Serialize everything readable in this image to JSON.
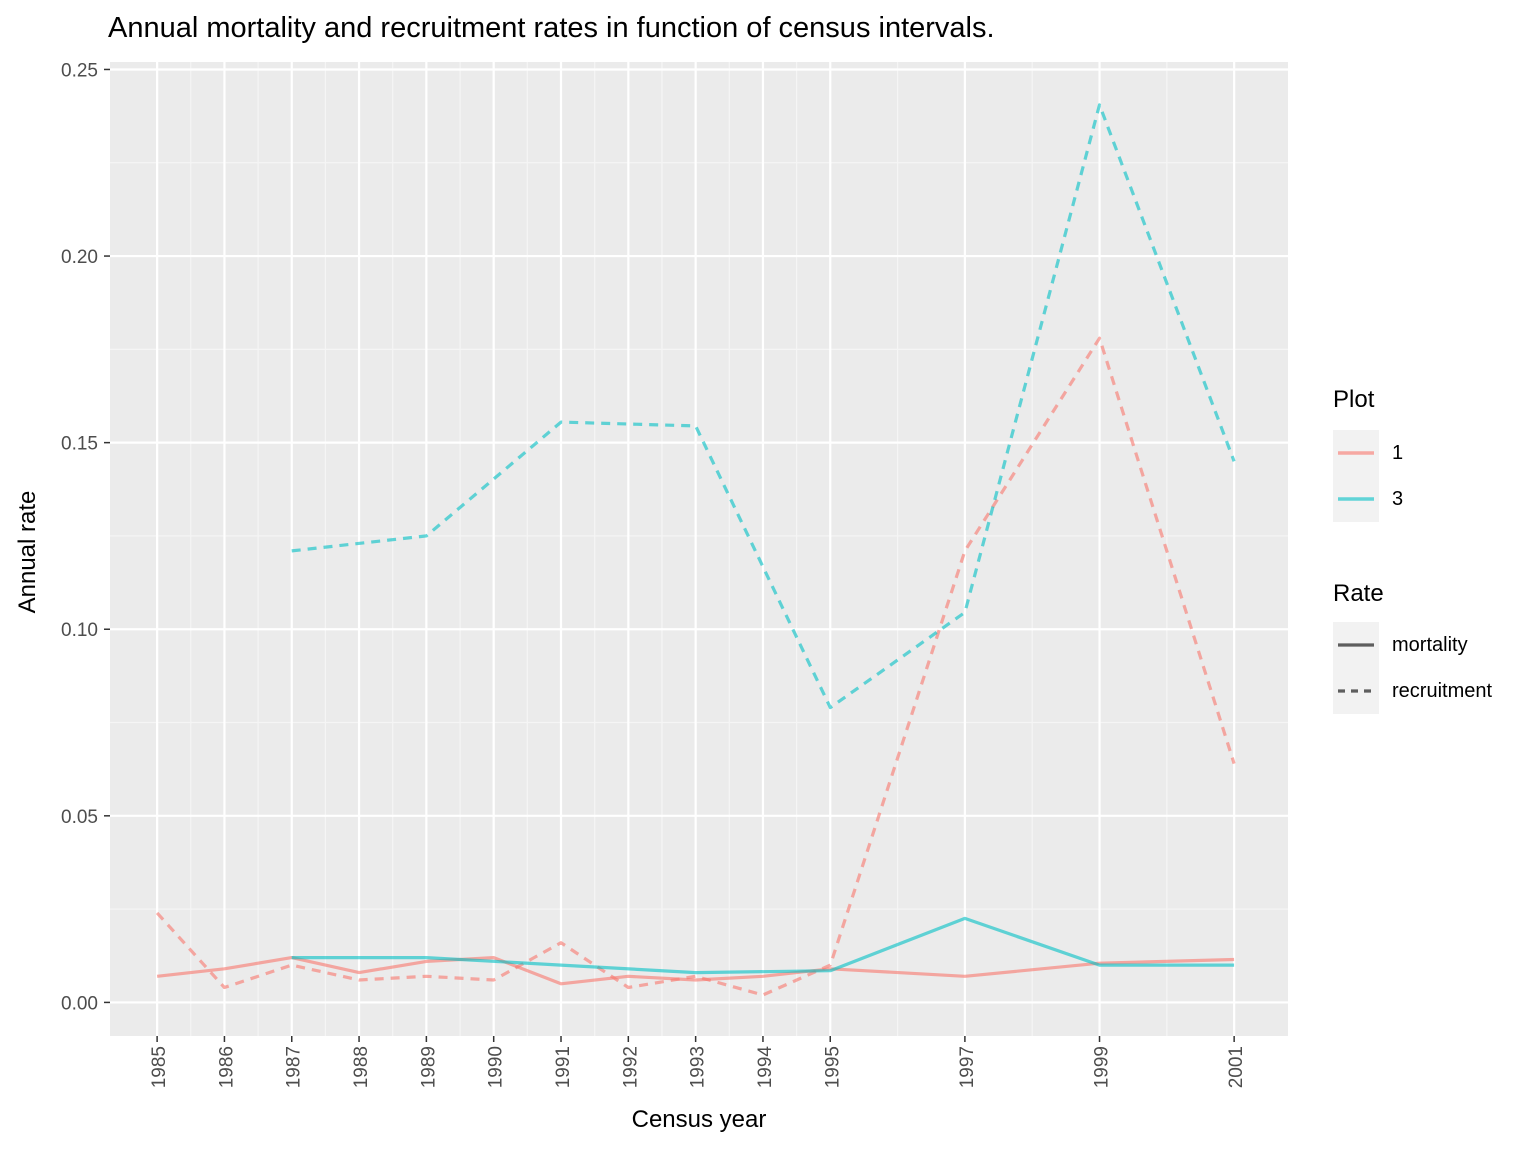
{
  "chart_data": {
    "type": "line",
    "title": "Annual mortality and recruitment rates in function of census intervals.",
    "xlabel": "Census year",
    "ylabel": "Annual rate",
    "x_ticks": [
      "1985",
      "1986",
      "1987",
      "1988",
      "1989",
      "1990",
      "1991",
      "1992",
      "1993",
      "1994",
      "1995",
      "1997",
      "1999",
      "2001"
    ],
    "y_ticks": [
      "0.00",
      "0.05",
      "0.10",
      "0.15",
      "0.20",
      "0.25"
    ],
    "xlim": [
      1984.3,
      2001.8
    ],
    "ylim": [
      -0.009,
      0.252
    ],
    "grid": true,
    "legend_position": "right",
    "legend": {
      "plot_title": "Plot",
      "rate_title": "Rate",
      "plots": [
        {
          "key": "1",
          "label": "1",
          "color": "#F8766D"
        },
        {
          "key": "3",
          "label": "3",
          "color": "#00BFC4"
        }
      ],
      "rates": [
        {
          "key": "mortality",
          "label": "mortality",
          "dash": "solid"
        },
        {
          "key": "recruitment",
          "label": "recruitment",
          "dash": "dashed"
        }
      ]
    },
    "series": [
      {
        "plot": "1",
        "rate": "mortality",
        "color": "#F8766D",
        "dash": "solid",
        "x": [
          1985,
          1986,
          1987,
          1988,
          1989,
          1990,
          1991,
          1992,
          1993,
          1994,
          1995,
          1997,
          1999,
          2001
        ],
        "y": [
          0.007,
          0.009,
          0.012,
          0.008,
          0.011,
          0.012,
          0.005,
          0.007,
          0.006,
          0.007,
          0.009,
          0.007,
          0.0105,
          0.0115
        ]
      },
      {
        "plot": "1",
        "rate": "recruitment",
        "color": "#F8766D",
        "dash": "dashed",
        "x": [
          1985,
          1986,
          1987,
          1988,
          1989,
          1990,
          1991,
          1992,
          1993,
          1994,
          1995,
          1997,
          1999,
          2001
        ],
        "y": [
          0.024,
          0.004,
          0.01,
          0.006,
          0.007,
          0.006,
          0.016,
          0.004,
          0.007,
          0.002,
          0.01,
          0.121,
          0.178,
          0.064
        ]
      },
      {
        "plot": "3",
        "rate": "mortality",
        "color": "#00BFC4",
        "dash": "solid",
        "x": [
          1987,
          1989,
          1991,
          1993,
          1995,
          1997,
          1999,
          2001
        ],
        "y": [
          0.012,
          0.012,
          0.01,
          0.008,
          0.0085,
          0.0225,
          0.01,
          0.01
        ]
      },
      {
        "plot": "3",
        "rate": "recruitment",
        "color": "#00BFC4",
        "dash": "dashed",
        "x": [
          1987,
          1989,
          1991,
          1993,
          1995,
          1997,
          1999,
          2001
        ],
        "y": [
          0.121,
          0.125,
          0.1555,
          0.1545,
          0.079,
          0.1045,
          0.2405,
          0.145
        ]
      }
    ]
  }
}
